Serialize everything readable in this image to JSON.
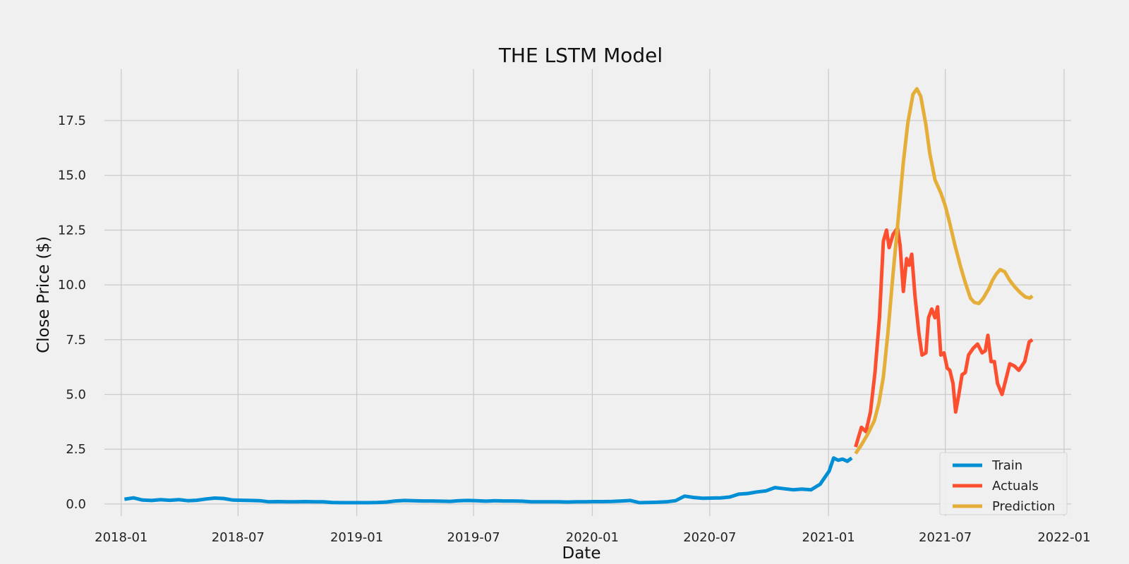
{
  "chart_data": {
    "type": "line",
    "title": "THE LSTM Model",
    "xlabel": "Date",
    "ylabel": "Close Price ($)",
    "x_range": [
      "2017-12-06",
      "2022-01-12"
    ],
    "ylim": [
      -0.55,
      19.85
    ],
    "x_ticks": [
      "2018-01",
      "2018-07",
      "2019-01",
      "2019-07",
      "2020-01",
      "2020-07",
      "2021-01",
      "2021-07",
      "2022-01"
    ],
    "y_ticks": [
      0.0,
      2.5,
      5.0,
      7.5,
      10.0,
      12.5,
      15.0,
      17.5
    ],
    "y_tick_labels": [
      "0.0",
      "2.5",
      "5.0",
      "7.5",
      "10.0",
      "12.5",
      "15.0",
      "17.5"
    ],
    "grid": true,
    "legend_position": "lower-right",
    "series": [
      {
        "name": "Train",
        "color": "#008fd5",
        "points": [
          [
            "2018-01-06",
            0.22
          ],
          [
            "2018-01-20",
            0.28
          ],
          [
            "2018-02-03",
            0.18
          ],
          [
            "2018-02-17",
            0.16
          ],
          [
            "2018-03-03",
            0.2
          ],
          [
            "2018-03-17",
            0.17
          ],
          [
            "2018-03-31",
            0.2
          ],
          [
            "2018-04-14",
            0.15
          ],
          [
            "2018-04-28",
            0.17
          ],
          [
            "2018-05-12",
            0.23
          ],
          [
            "2018-05-26",
            0.27
          ],
          [
            "2018-06-09",
            0.25
          ],
          [
            "2018-06-23",
            0.18
          ],
          [
            "2018-07-07",
            0.17
          ],
          [
            "2018-07-21",
            0.16
          ],
          [
            "2018-08-04",
            0.15
          ],
          [
            "2018-08-18",
            0.1
          ],
          [
            "2018-09-01",
            0.11
          ],
          [
            "2018-09-15",
            0.1
          ],
          [
            "2018-09-29",
            0.1
          ],
          [
            "2018-10-13",
            0.11
          ],
          [
            "2018-10-27",
            0.1
          ],
          [
            "2018-11-10",
            0.1
          ],
          [
            "2018-11-24",
            0.07
          ],
          [
            "2018-12-08",
            0.06
          ],
          [
            "2018-12-22",
            0.06
          ],
          [
            "2019-01-05",
            0.06
          ],
          [
            "2019-01-19",
            0.06
          ],
          [
            "2019-02-02",
            0.07
          ],
          [
            "2019-02-16",
            0.09
          ],
          [
            "2019-03-02",
            0.14
          ],
          [
            "2019-03-16",
            0.16
          ],
          [
            "2019-03-30",
            0.15
          ],
          [
            "2019-04-13",
            0.14
          ],
          [
            "2019-04-27",
            0.14
          ],
          [
            "2019-05-11",
            0.13
          ],
          [
            "2019-05-25",
            0.12
          ],
          [
            "2019-06-08",
            0.15
          ],
          [
            "2019-06-22",
            0.16
          ],
          [
            "2019-07-06",
            0.15
          ],
          [
            "2019-07-20",
            0.13
          ],
          [
            "2019-08-03",
            0.15
          ],
          [
            "2019-08-17",
            0.14
          ],
          [
            "2019-08-31",
            0.14
          ],
          [
            "2019-09-14",
            0.13
          ],
          [
            "2019-09-28",
            0.1
          ],
          [
            "2019-10-12",
            0.1
          ],
          [
            "2019-10-26",
            0.1
          ],
          [
            "2019-11-09",
            0.1
          ],
          [
            "2019-11-23",
            0.09
          ],
          [
            "2019-12-07",
            0.1
          ],
          [
            "2019-12-21",
            0.1
          ],
          [
            "2020-01-04",
            0.11
          ],
          [
            "2020-01-18",
            0.11
          ],
          [
            "2020-02-01",
            0.12
          ],
          [
            "2020-02-15",
            0.14
          ],
          [
            "2020-02-29",
            0.16
          ],
          [
            "2020-03-14",
            0.06
          ],
          [
            "2020-03-28",
            0.07
          ],
          [
            "2020-04-11",
            0.08
          ],
          [
            "2020-04-25",
            0.1
          ],
          [
            "2020-05-09",
            0.15
          ],
          [
            "2020-05-23",
            0.36
          ],
          [
            "2020-06-06",
            0.3
          ],
          [
            "2020-06-20",
            0.26
          ],
          [
            "2020-07-04",
            0.27
          ],
          [
            "2020-07-18",
            0.28
          ],
          [
            "2020-08-01",
            0.32
          ],
          [
            "2020-08-15",
            0.45
          ],
          [
            "2020-08-29",
            0.48
          ],
          [
            "2020-09-12",
            0.55
          ],
          [
            "2020-09-26",
            0.6
          ],
          [
            "2020-10-10",
            0.75
          ],
          [
            "2020-10-24",
            0.7
          ],
          [
            "2020-11-07",
            0.65
          ],
          [
            "2020-11-21",
            0.68
          ],
          [
            "2020-12-05",
            0.65
          ],
          [
            "2020-12-19",
            0.9
          ],
          [
            "2021-01-02",
            1.5
          ],
          [
            "2021-01-09",
            2.1
          ],
          [
            "2021-01-16",
            2.0
          ],
          [
            "2021-01-23",
            2.05
          ],
          [
            "2021-01-30",
            1.95
          ],
          [
            "2021-02-06",
            2.1
          ]
        ]
      },
      {
        "name": "Actuals",
        "color": "#fc4f30",
        "points": [
          [
            "2021-02-12",
            2.6
          ],
          [
            "2021-02-21",
            3.5
          ],
          [
            "2021-02-28",
            3.3
          ],
          [
            "2021-03-07",
            4.2
          ],
          [
            "2021-03-14",
            6.0
          ],
          [
            "2021-03-21",
            8.5
          ],
          [
            "2021-03-27",
            12.0
          ],
          [
            "2021-04-01",
            12.5
          ],
          [
            "2021-04-05",
            11.7
          ],
          [
            "2021-04-11",
            12.3
          ],
          [
            "2021-04-18",
            12.6
          ],
          [
            "2021-04-22",
            11.8
          ],
          [
            "2021-04-27",
            9.7
          ],
          [
            "2021-05-02",
            11.2
          ],
          [
            "2021-05-06",
            10.9
          ],
          [
            "2021-05-10",
            11.4
          ],
          [
            "2021-05-15",
            9.5
          ],
          [
            "2021-05-21",
            7.8
          ],
          [
            "2021-05-26",
            6.8
          ],
          [
            "2021-06-01",
            6.9
          ],
          [
            "2021-06-05",
            8.5
          ],
          [
            "2021-06-10",
            8.9
          ],
          [
            "2021-06-15",
            8.5
          ],
          [
            "2021-06-19",
            9.0
          ],
          [
            "2021-06-24",
            6.8
          ],
          [
            "2021-06-29",
            6.9
          ],
          [
            "2021-07-04",
            6.2
          ],
          [
            "2021-07-08",
            6.1
          ],
          [
            "2021-07-13",
            5.5
          ],
          [
            "2021-07-17",
            4.2
          ],
          [
            "2021-07-22",
            5.0
          ],
          [
            "2021-07-27",
            5.9
          ],
          [
            "2021-08-01",
            6.0
          ],
          [
            "2021-08-06",
            6.8
          ],
          [
            "2021-08-13",
            7.1
          ],
          [
            "2021-08-20",
            7.3
          ],
          [
            "2021-08-27",
            6.9
          ],
          [
            "2021-09-01",
            7.0
          ],
          [
            "2021-09-05",
            7.7
          ],
          [
            "2021-09-10",
            6.5
          ],
          [
            "2021-09-15",
            6.5
          ],
          [
            "2021-09-20",
            5.5
          ],
          [
            "2021-09-27",
            5.0
          ],
          [
            "2021-10-03",
            5.7
          ],
          [
            "2021-10-09",
            6.4
          ],
          [
            "2021-10-16",
            6.3
          ],
          [
            "2021-10-23",
            6.1
          ],
          [
            "2021-11-01",
            6.5
          ],
          [
            "2021-11-08",
            7.4
          ],
          [
            "2021-11-13",
            7.5
          ]
        ]
      },
      {
        "name": "Prediction",
        "color": "#e5ae38",
        "points": [
          [
            "2021-02-12",
            2.3
          ],
          [
            "2021-02-21",
            2.7
          ],
          [
            "2021-03-03",
            3.2
          ],
          [
            "2021-03-13",
            3.8
          ],
          [
            "2021-03-20",
            4.6
          ],
          [
            "2021-03-27",
            5.8
          ],
          [
            "2021-04-03",
            7.8
          ],
          [
            "2021-04-11",
            10.5
          ],
          [
            "2021-04-19",
            13.0
          ],
          [
            "2021-04-27",
            15.6
          ],
          [
            "2021-05-04",
            17.4
          ],
          [
            "2021-05-12",
            18.7
          ],
          [
            "2021-05-18",
            18.95
          ],
          [
            "2021-05-24",
            18.6
          ],
          [
            "2021-06-01",
            17.3
          ],
          [
            "2021-06-07",
            16.0
          ],
          [
            "2021-06-15",
            14.8
          ],
          [
            "2021-06-24",
            14.2
          ],
          [
            "2021-07-01",
            13.6
          ],
          [
            "2021-07-08",
            12.8
          ],
          [
            "2021-07-16",
            11.8
          ],
          [
            "2021-07-25",
            10.8
          ],
          [
            "2021-08-01",
            10.1
          ],
          [
            "2021-08-09",
            9.4
          ],
          [
            "2021-08-15",
            9.2
          ],
          [
            "2021-08-22",
            9.15
          ],
          [
            "2021-08-29",
            9.4
          ],
          [
            "2021-09-06",
            9.8
          ],
          [
            "2021-09-12",
            10.2
          ],
          [
            "2021-09-18",
            10.5
          ],
          [
            "2021-09-24",
            10.7
          ],
          [
            "2021-10-01",
            10.6
          ],
          [
            "2021-10-09",
            10.2
          ],
          [
            "2021-10-17",
            9.9
          ],
          [
            "2021-10-25",
            9.65
          ],
          [
            "2021-11-02",
            9.45
          ],
          [
            "2021-11-09",
            9.4
          ],
          [
            "2021-11-13",
            9.5
          ]
        ]
      }
    ]
  }
}
